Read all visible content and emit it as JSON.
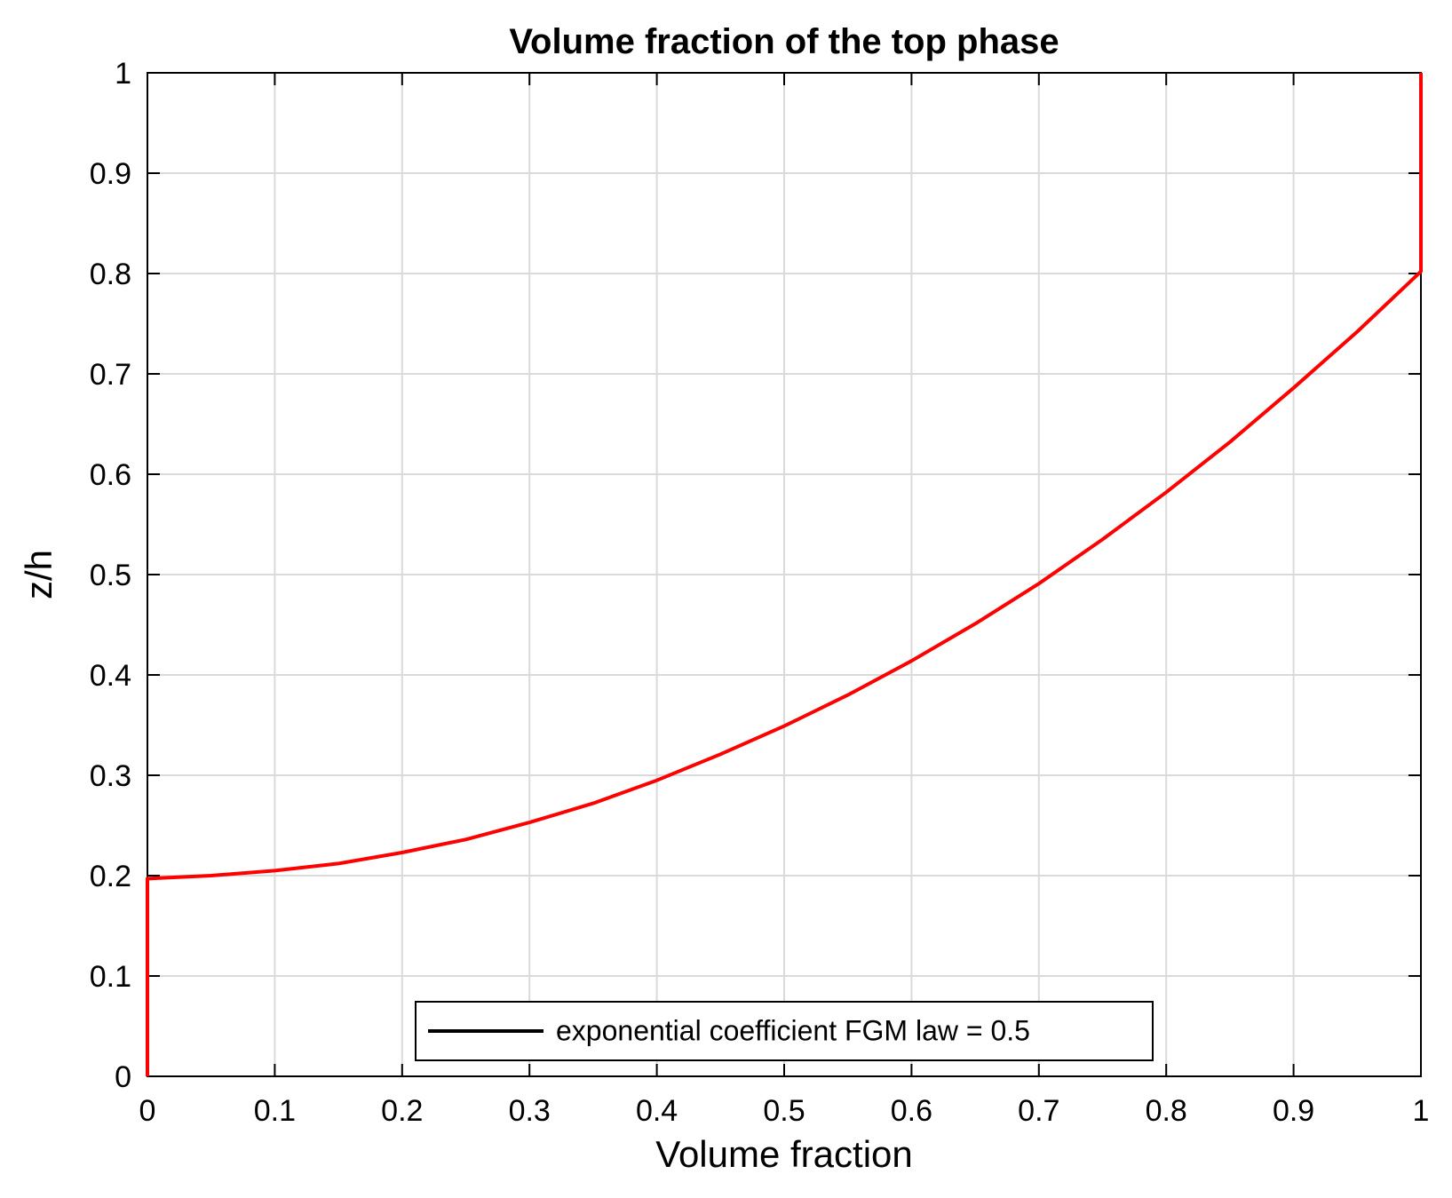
{
  "chart_data": {
    "type": "line",
    "title": "Volume fraction of the top phase",
    "xlabel": "Volume fraction",
    "ylabel": "z/h",
    "xlim": [
      0,
      1
    ],
    "ylim": [
      0,
      1
    ],
    "xticks": [
      0,
      0.1,
      0.2,
      0.3,
      0.4,
      0.5,
      0.6,
      0.7,
      0.8,
      0.9,
      1
    ],
    "yticks": [
      0,
      0.1,
      0.2,
      0.3,
      0.4,
      0.5,
      0.6,
      0.7,
      0.8,
      0.9,
      1
    ],
    "xtick_labels": [
      "0",
      "0.1",
      "0.2",
      "0.3",
      "0.4",
      "0.5",
      "0.6",
      "0.7",
      "0.8",
      "0.9",
      "1"
    ],
    "ytick_labels": [
      "0",
      "0.1",
      "0.2",
      "0.3",
      "0.4",
      "0.5",
      "0.6",
      "0.7",
      "0.8",
      "0.9",
      "1"
    ],
    "grid": true,
    "legend": {
      "placement": "bottom-center",
      "entries": [
        {
          "label": "exponential coefficient FGM law = 0.5",
          "color": "#000000"
        }
      ]
    },
    "series": [
      {
        "color": "#ff0000",
        "x": [
          0,
          0,
          0.05,
          0.1,
          0.15,
          0.2,
          0.25,
          0.3,
          0.35,
          0.4,
          0.45,
          0.5,
          0.55,
          0.6,
          0.65,
          0.7,
          0.75,
          0.8,
          0.85,
          0.9,
          0.95,
          1,
          1
        ],
        "y": [
          0,
          0.197,
          0.2,
          0.205,
          0.212,
          0.223,
          0.236,
          0.253,
          0.272,
          0.295,
          0.321,
          0.349,
          0.38,
          0.414,
          0.451,
          0.491,
          0.535,
          0.582,
          0.632,
          0.686,
          0.742,
          0.802,
          1.0
        ]
      }
    ]
  }
}
